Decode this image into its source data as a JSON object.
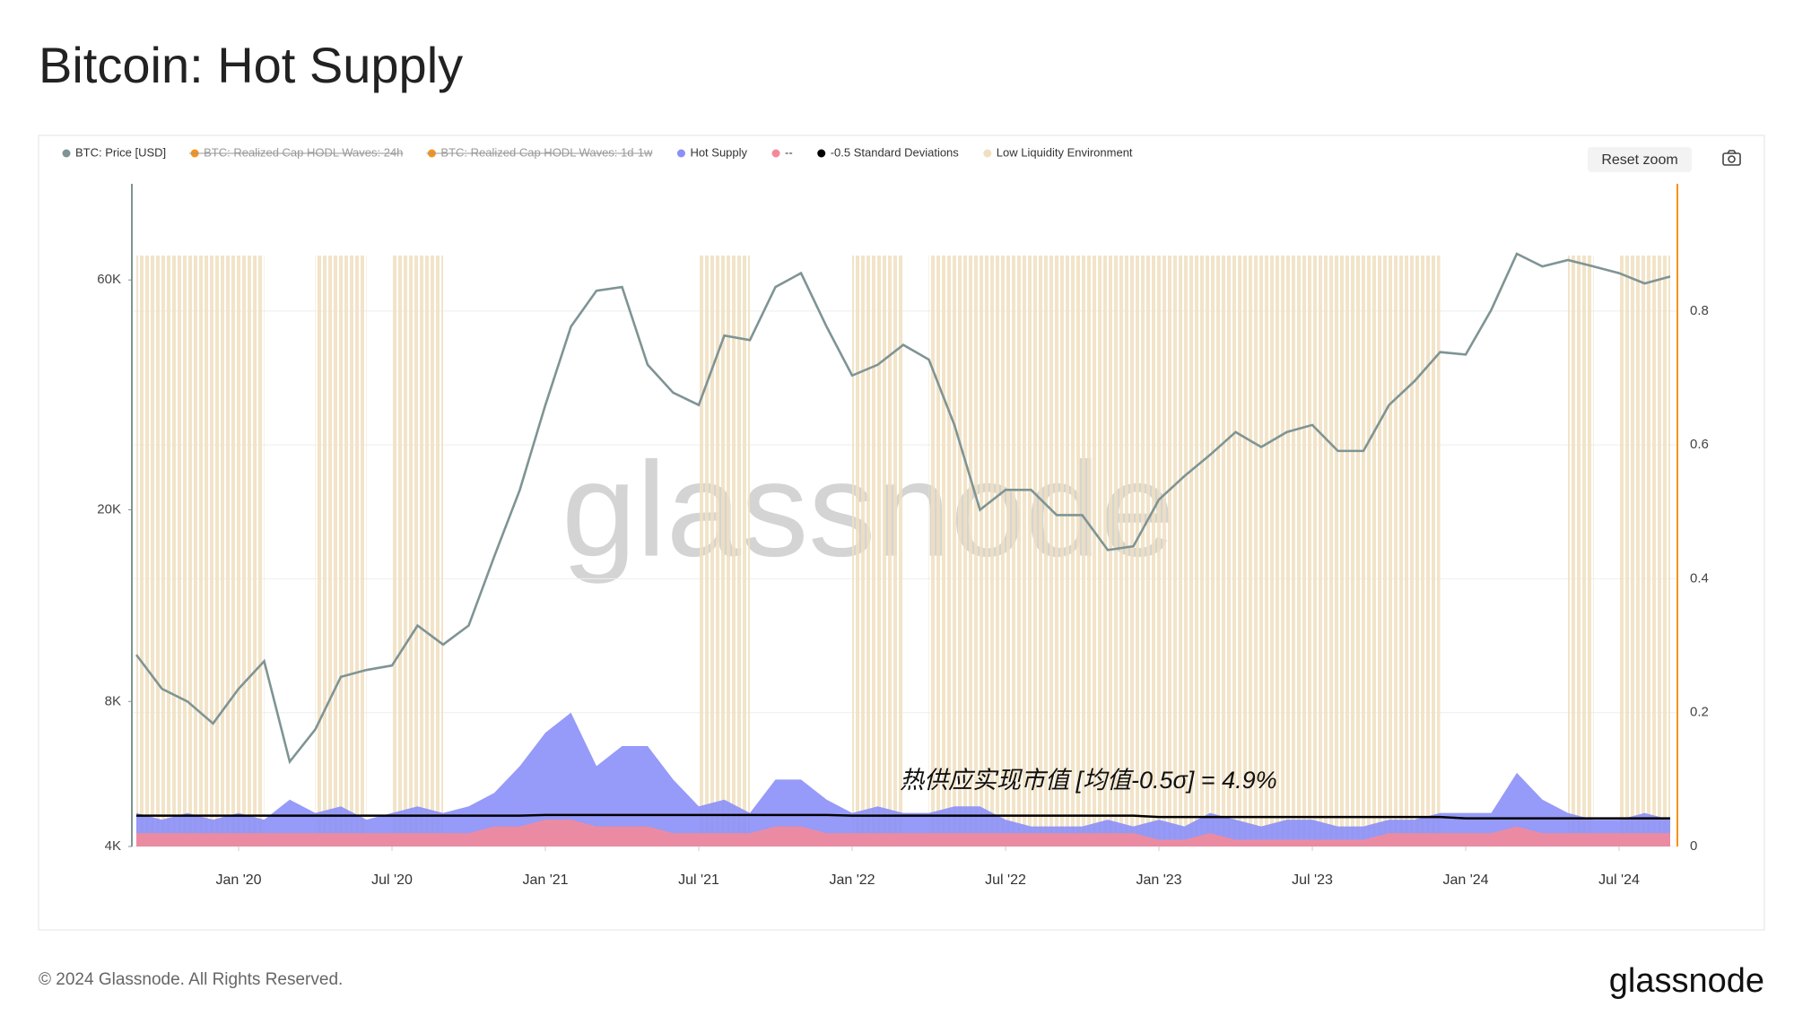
{
  "header": {
    "title": "Bitcoin: Hot Supply"
  },
  "chart_data": {
    "type": "line",
    "annotation": "热供应实现市值 [均值-0.5σ] = 4.9%",
    "watermark": "glassnode",
    "reset_button": "Reset zoom",
    "x": [
      "2019-09",
      "2019-10",
      "2019-11",
      "2019-12",
      "2020-01",
      "2020-02",
      "2020-03",
      "2020-04",
      "2020-05",
      "2020-06",
      "2020-07",
      "2020-08",
      "2020-09",
      "2020-10",
      "2020-11",
      "2020-12",
      "2021-01",
      "2021-02",
      "2021-03",
      "2021-04",
      "2021-05",
      "2021-06",
      "2021-07",
      "2021-08",
      "2021-09",
      "2021-10",
      "2021-11",
      "2021-12",
      "2022-01",
      "2022-02",
      "2022-03",
      "2022-04",
      "2022-05",
      "2022-06",
      "2022-07",
      "2022-08",
      "2022-09",
      "2022-10",
      "2022-11",
      "2022-12",
      "2023-01",
      "2023-02",
      "2023-03",
      "2023-04",
      "2023-05",
      "2023-06",
      "2023-07",
      "2023-08",
      "2023-09",
      "2023-10",
      "2023-11",
      "2023-12",
      "2024-01",
      "2024-02",
      "2024-03",
      "2024-04",
      "2024-05",
      "2024-06",
      "2024-07",
      "2024-08",
      "2024-09"
    ],
    "xlim": [
      "2019-09",
      "2024-09"
    ],
    "xticks": [
      {
        "value": "2020-01",
        "label": "Jan '20"
      },
      {
        "value": "2020-07",
        "label": "Jul '20"
      },
      {
        "value": "2021-01",
        "label": "Jan '21"
      },
      {
        "value": "2021-07",
        "label": "Jul '21"
      },
      {
        "value": "2022-01",
        "label": "Jan '22"
      },
      {
        "value": "2022-07",
        "label": "Jul '22"
      },
      {
        "value": "2023-01",
        "label": "Jan '23"
      },
      {
        "value": "2023-07",
        "label": "Jul '23"
      },
      {
        "value": "2024-01",
        "label": "Jan '24"
      },
      {
        "value": "2024-07",
        "label": "Jul '24"
      }
    ],
    "ylim": [
      4000,
      95000
    ],
    "log_scale": true,
    "yticks": [
      {
        "value": 4000,
        "label": "4K"
      },
      {
        "value": 8000,
        "label": "8K"
      },
      {
        "value": 20000,
        "label": "20K"
      },
      {
        "value": 60000,
        "label": "60K"
      }
    ],
    "y2lim": [
      0,
      0.99
    ],
    "y2ticks": [
      0,
      0.2,
      0.4,
      0.6,
      0.8
    ],
    "grid": true,
    "series": [
      {
        "name": "BTC: Price [USD]",
        "color": "#7f9494",
        "axis": "y",
        "style": "line",
        "values": [
          10000,
          8500,
          8000,
          7200,
          8500,
          9700,
          6000,
          7000,
          9000,
          9300,
          9500,
          11500,
          10500,
          11500,
          16000,
          22000,
          33000,
          48000,
          57000,
          58000,
          40000,
          35000,
          33000,
          46000,
          45000,
          58000,
          62000,
          48000,
          38000,
          40000,
          44000,
          41000,
          30000,
          20000,
          22000,
          22000,
          19500,
          19500,
          16500,
          16800,
          21000,
          23500,
          26000,
          29000,
          27000,
          29000,
          30000,
          26500,
          26500,
          33000,
          37000,
          42500,
          42000,
          52000,
          68000,
          64000,
          66000,
          64000,
          62000,
          59000,
          61000
        ]
      },
      {
        "name": "BTC: Realized Cap HODL Waves: 24h",
        "color": "#f7931a",
        "hidden": true
      },
      {
        "name": "BTC: Realized Cap HODL Waves: 1d-1w",
        "color": "#f7931a",
        "hidden": true
      },
      {
        "name": "Hot Supply",
        "color": "#8b8ff7",
        "axis": "y2",
        "style": "area",
        "values": [
          0.05,
          0.04,
          0.05,
          0.04,
          0.05,
          0.04,
          0.07,
          0.05,
          0.06,
          0.04,
          0.05,
          0.06,
          0.05,
          0.06,
          0.08,
          0.12,
          0.17,
          0.2,
          0.12,
          0.15,
          0.15,
          0.1,
          0.06,
          0.07,
          0.05,
          0.1,
          0.1,
          0.07,
          0.05,
          0.06,
          0.05,
          0.05,
          0.06,
          0.06,
          0.04,
          0.03,
          0.03,
          0.03,
          0.04,
          0.03,
          0.04,
          0.03,
          0.05,
          0.04,
          0.03,
          0.04,
          0.04,
          0.03,
          0.03,
          0.04,
          0.04,
          0.05,
          0.05,
          0.05,
          0.11,
          0.07,
          0.05,
          0.04,
          0.04,
          0.05,
          0.04
        ]
      },
      {
        "name": "--",
        "color": "#f48a99",
        "axis": "y2",
        "style": "area",
        "values": [
          0.02,
          0.02,
          0.02,
          0.02,
          0.02,
          0.02,
          0.02,
          0.02,
          0.02,
          0.02,
          0.02,
          0.02,
          0.02,
          0.02,
          0.03,
          0.03,
          0.04,
          0.04,
          0.03,
          0.03,
          0.03,
          0.02,
          0.02,
          0.02,
          0.02,
          0.03,
          0.03,
          0.02,
          0.02,
          0.02,
          0.02,
          0.02,
          0.02,
          0.02,
          0.02,
          0.02,
          0.02,
          0.02,
          0.02,
          0.02,
          0.01,
          0.01,
          0.02,
          0.01,
          0.01,
          0.01,
          0.01,
          0.01,
          0.01,
          0.02,
          0.02,
          0.02,
          0.02,
          0.02,
          0.03,
          0.02,
          0.02,
          0.02,
          0.02,
          0.02,
          0.02
        ]
      },
      {
        "name": "-0.5 Standard Deviations",
        "color": "#000000",
        "axis": "y2",
        "style": "line",
        "values": [
          0.046,
          0.046,
          0.046,
          0.046,
          0.046,
          0.046,
          0.046,
          0.046,
          0.046,
          0.046,
          0.046,
          0.046,
          0.046,
          0.046,
          0.046,
          0.046,
          0.047,
          0.047,
          0.047,
          0.047,
          0.047,
          0.047,
          0.047,
          0.047,
          0.047,
          0.047,
          0.047,
          0.047,
          0.046,
          0.046,
          0.046,
          0.046,
          0.046,
          0.046,
          0.046,
          0.046,
          0.046,
          0.046,
          0.046,
          0.046,
          0.044,
          0.044,
          0.044,
          0.044,
          0.044,
          0.044,
          0.044,
          0.044,
          0.044,
          0.044,
          0.044,
          0.044,
          0.042,
          0.042,
          0.042,
          0.042,
          0.042,
          0.042,
          0.042,
          0.042,
          0.042
        ]
      }
    ],
    "bands": {
      "name": "Low Liquidity Environment",
      "color": "#f0dfc0",
      "ranges": [
        [
          "2019-09",
          "2020-01"
        ],
        [
          "2020-04",
          "2020-05"
        ],
        [
          "2020-07",
          "2020-08"
        ],
        [
          "2021-07",
          "2021-08"
        ],
        [
          "2022-01",
          "2022-02"
        ],
        [
          "2022-04",
          "2023-11"
        ],
        [
          "2024-05",
          "2024-05"
        ],
        [
          "2024-07",
          "2024-07"
        ],
        [
          "2024-08",
          "2024-09"
        ]
      ]
    }
  },
  "footer": {
    "copyright": "© 2024 Glassnode. All Rights Reserved.",
    "logo": "glassnode"
  }
}
